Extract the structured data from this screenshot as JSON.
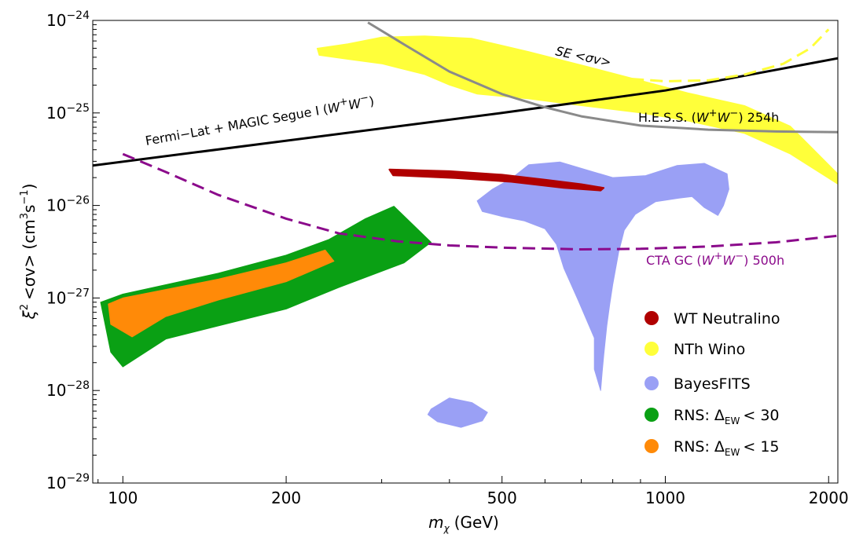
{
  "chart_data": {
    "type": "scatter",
    "xlabel": {
      "main": "m",
      "sub": "χ",
      "units": "(GeV)"
    },
    "ylabel": {
      "xi": "ξ",
      "xi_exp": "2",
      "main": "<σv> (cm",
      "exp3": "3",
      "s": "s",
      "expm1": "−1",
      "close": ")"
    },
    "x_scale": "log",
    "y_scale": "log",
    "xlim": [
      88,
      2080
    ],
    "ylim": [
      1e-29,
      1e-24
    ],
    "x_tick_values": [
      100,
      200,
      500,
      1000,
      2000
    ],
    "x_tick_labels": [
      "100",
      "200",
      "500",
      "1000",
      "2000"
    ],
    "y_tick_values": [
      1e-29,
      1e-28,
      1e-27,
      1e-26,
      1e-25,
      1e-24
    ],
    "y_tick_base": "10",
    "y_tick_exponents": [
      "−29",
      "−28",
      "−27",
      "−26",
      "−25",
      "−24"
    ],
    "grid": false,
    "legend_position": "bottom-right",
    "colors": {
      "wt_neutralino": "#b00000",
      "nth_wino": "#ffff3a",
      "bayesfits": "#9aa0f5",
      "rns30": "#0aa014",
      "rns15": "#ff8a08",
      "fermi": "#000000",
      "hess": "#8a8a8a",
      "se": "#ffff3a",
      "cta": "#8b0a8b"
    },
    "legend": [
      {
        "key": "wt_neutralino",
        "label": "WT Neutralino"
      },
      {
        "key": "nth_wino",
        "label": "NTh Wino"
      },
      {
        "key": "bayesfits",
        "label": "BayesFITS"
      },
      {
        "key": "rns30",
        "label_main": "RNS: Δ",
        "label_sub": "EW",
        "label_tail": "< 30"
      },
      {
        "key": "rns15",
        "label_main": "RNS: Δ",
        "label_sub": "EW",
        "label_tail": "< 15"
      }
    ],
    "curves": [
      {
        "key": "fermi",
        "style": "solid",
        "label": {
          "main": "Fermi−Lat + MAGIC Segue I (",
          "w1": "W",
          "w1s": "+",
          "w2": "W",
          "w2s": "−",
          "close": ")"
        },
        "points": [
          [
            88,
            2.7e-26
          ],
          [
            500,
            1e-25
          ],
          [
            1000,
            1.75e-25
          ],
          [
            2080,
            3.9e-25
          ]
        ]
      },
      {
        "key": "hess",
        "style": "solid",
        "label": {
          "main": "H.E.S.S. (",
          "w1": "W",
          "w1s": "+",
          "w2": "W",
          "w2s": "−",
          "tail": ") 254h"
        },
        "points": [
          [
            283,
            9.5e-25
          ],
          [
            330,
            5.5e-25
          ],
          [
            400,
            2.8e-25
          ],
          [
            500,
            1.6e-25
          ],
          [
            600,
            1.15e-25
          ],
          [
            700,
            9.2e-26
          ],
          [
            900,
            7.3e-26
          ],
          [
            1200,
            6.6e-26
          ],
          [
            1600,
            6.3e-26
          ],
          [
            2080,
            6.2e-26
          ]
        ]
      },
      {
        "key": "se",
        "style": "dashed",
        "label": {
          "main": "SE <σv>"
        },
        "points": [
          [
            430,
            6.3e-25
          ],
          [
            560,
            4.4e-25
          ],
          [
            700,
            3e-25
          ],
          [
            850,
            2.35e-25
          ],
          [
            1000,
            2.2e-25
          ],
          [
            1200,
            2.25e-25
          ],
          [
            1400,
            2.6e-25
          ],
          [
            1650,
            3.4e-25
          ],
          [
            1850,
            5e-25
          ],
          [
            2000,
            8e-25
          ]
        ]
      },
      {
        "key": "cta",
        "style": "dashed",
        "label": {
          "main": "CTA GC (",
          "w1": "W",
          "w1s": "+",
          "w2": "W",
          "w2s": "−",
          "tail": ") 500h"
        },
        "points": [
          [
            100,
            3.6e-26
          ],
          [
            120,
            2.3e-26
          ],
          [
            150,
            1.3e-26
          ],
          [
            200,
            7.2e-27
          ],
          [
            250,
            5e-27
          ],
          [
            320,
            4.1e-27
          ],
          [
            400,
            3.7e-27
          ],
          [
            500,
            3.5e-27
          ],
          [
            700,
            3.35e-27
          ],
          [
            900,
            3.4e-27
          ],
          [
            1200,
            3.6e-27
          ],
          [
            1600,
            4e-27
          ],
          [
            2080,
            4.7e-27
          ]
        ]
      }
    ],
    "regions": [
      {
        "key": "rns30",
        "points": [
          [
            91,
            9e-28
          ],
          [
            100,
            1.1e-27
          ],
          [
            150,
            1.85e-27
          ],
          [
            200,
            2.9e-27
          ],
          [
            240,
            4.3e-27
          ],
          [
            280,
            7.2e-27
          ],
          [
            316,
            9.8e-27
          ],
          [
            370,
            4e-27
          ],
          [
            330,
            2.4e-27
          ],
          [
            250,
            1.3e-27
          ],
          [
            200,
            7.6e-28
          ],
          [
            150,
            5e-28
          ],
          [
            120,
            3.6e-28
          ],
          [
            100,
            1.8e-28
          ],
          [
            95,
            2.6e-28
          ]
        ]
      },
      {
        "key": "rns15",
        "points": [
          [
            94,
            8.6e-28
          ],
          [
            100,
            1e-27
          ],
          [
            150,
            1.6e-27
          ],
          [
            200,
            2.4e-27
          ],
          [
            236,
            3.3e-27
          ],
          [
            245,
            2.5e-27
          ],
          [
            200,
            1.5e-27
          ],
          [
            150,
            9.5e-28
          ],
          [
            120,
            6.3e-28
          ],
          [
            104,
            3.8e-28
          ],
          [
            95,
            5.2e-28
          ]
        ]
      },
      {
        "key": "bayesfits",
        "points": [
          [
            450,
            1.12e-26
          ],
          [
            480,
            1.5e-26
          ],
          [
            520,
            1.95e-26
          ],
          [
            560,
            2.75e-26
          ],
          [
            640,
            2.95e-26
          ],
          [
            720,
            2.4e-26
          ],
          [
            800,
            2e-26
          ],
          [
            920,
            2.1e-26
          ],
          [
            1050,
            2.7e-26
          ],
          [
            1180,
            2.85e-26
          ],
          [
            1300,
            2.2e-26
          ],
          [
            1310,
            1.5e-26
          ],
          [
            1280,
            1e-26
          ],
          [
            1250,
            7.8e-27
          ],
          [
            1180,
            9.5e-27
          ],
          [
            1120,
            1.25e-26
          ],
          [
            1060,
            1.2e-26
          ],
          [
            960,
            1.1e-26
          ],
          [
            880,
            8e-27
          ],
          [
            840,
            5.4e-27
          ],
          [
            820,
            3.1e-27
          ],
          [
            800,
            1.4e-27
          ],
          [
            790,
            8.6e-28
          ],
          [
            780,
            5e-28
          ],
          [
            770,
            2.4e-28
          ],
          [
            765,
            1.6e-28
          ],
          [
            760,
            1e-28
          ],
          [
            740,
            1.7e-28
          ],
          [
            740,
            3.7e-28
          ],
          [
            690,
            9.6e-28
          ],
          [
            650,
            2.1e-27
          ],
          [
            630,
            3.8e-27
          ],
          [
            600,
            5.6e-27
          ],
          [
            550,
            6.8e-27
          ],
          [
            500,
            7.6e-27
          ],
          [
            460,
            8.6e-27
          ]
        ]
      },
      {
        "key": "bayesfits",
        "points": [
          [
            370,
            6.3e-29
          ],
          [
            400,
            8.3e-29
          ],
          [
            440,
            7.4e-29
          ],
          [
            470,
            5.8e-29
          ],
          [
            460,
            4.7e-29
          ],
          [
            420,
            4e-29
          ],
          [
            380,
            4.6e-29
          ],
          [
            365,
            5.5e-29
          ]
        ]
      },
      {
        "key": "nth_wino",
        "points": [
          [
            228,
            5e-25
          ],
          [
            260,
            5.6e-25
          ],
          [
            300,
            6.6e-25
          ],
          [
            360,
            6.8e-25
          ],
          [
            440,
            6.4e-25
          ],
          [
            560,
            4.6e-25
          ],
          [
            700,
            3.3e-25
          ],
          [
            900,
            2.25e-25
          ],
          [
            1100,
            1.65e-25
          ],
          [
            1400,
            1.2e-25
          ],
          [
            1700,
            7.2e-26
          ],
          [
            2080,
            2.2e-26
          ],
          [
            2080,
            1.7e-26
          ],
          [
            1700,
            3.6e-26
          ],
          [
            1400,
            6e-26
          ],
          [
            1100,
            8.2e-26
          ],
          [
            900,
            1e-25
          ],
          [
            700,
            1.2e-25
          ],
          [
            560,
            1.42e-25
          ],
          [
            450,
            1.6e-25
          ],
          [
            400,
            2e-25
          ],
          [
            360,
            2.6e-25
          ],
          [
            300,
            3.4e-25
          ],
          [
            260,
            3.8e-25
          ],
          [
            230,
            4.2e-25
          ]
        ]
      },
      {
        "key": "wt_neutralino",
        "points": [
          [
            310,
            2.45e-26
          ],
          [
            400,
            2.35e-26
          ],
          [
            500,
            2.15e-26
          ],
          [
            600,
            1.9e-26
          ],
          [
            700,
            1.7e-26
          ],
          [
            770,
            1.55e-26
          ],
          [
            760,
            1.45e-26
          ],
          [
            650,
            1.55e-26
          ],
          [
            520,
            1.8e-26
          ],
          [
            410,
            1.98e-26
          ],
          [
            315,
            2.12e-26
          ]
        ]
      }
    ]
  }
}
